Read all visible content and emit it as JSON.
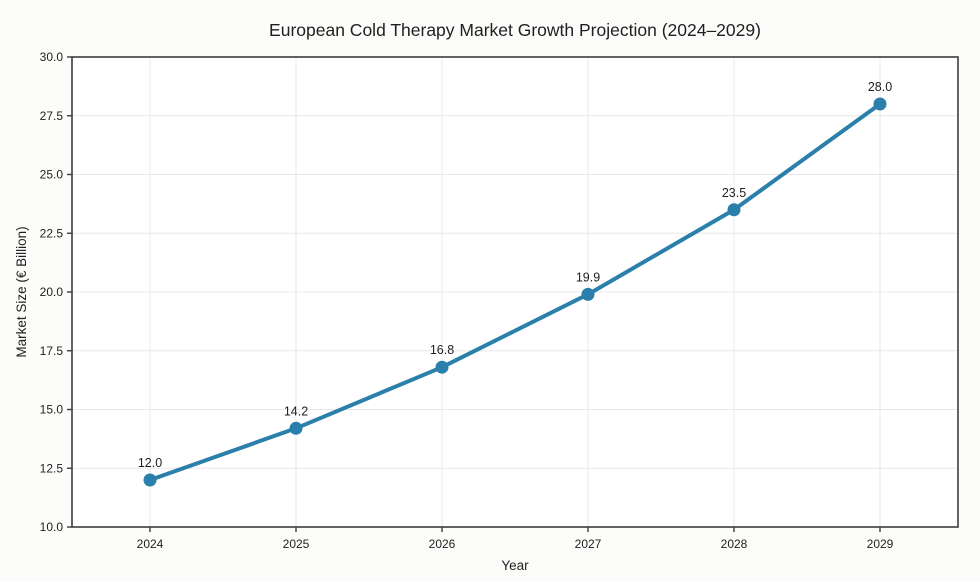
{
  "chart_data": {
    "type": "line",
    "title": "European Cold Therapy Market Growth Projection (2024–2029)",
    "xlabel": "Year",
    "ylabel": "Market Size (€ Billion)",
    "categories": [
      "2024",
      "2025",
      "2026",
      "2027",
      "2028",
      "2029"
    ],
    "values": [
      12.0,
      14.2,
      16.8,
      19.9,
      23.5,
      28.0
    ],
    "point_labels": [
      "12.0",
      "14.2",
      "16.8",
      "19.9",
      "23.5",
      "28.0"
    ],
    "ylim": [
      10.0,
      30.0
    ],
    "ytick_step": 2.5,
    "ytick_labels": [
      "10.0",
      "12.5",
      "15.0",
      "17.5",
      "20.0",
      "22.5",
      "25.0",
      "27.5",
      "30.0"
    ],
    "grid": "on",
    "legend": "none",
    "colors": {
      "line": "#2b7fab",
      "marker": "#2b7fab",
      "grid": "#e8e8e8",
      "spine": "#3d3d3d",
      "tick": "#3d3d3d",
      "text": "#1f1f1f",
      "figure_background": "#fcfcfa",
      "plot_background": "#ffffff"
    }
  }
}
